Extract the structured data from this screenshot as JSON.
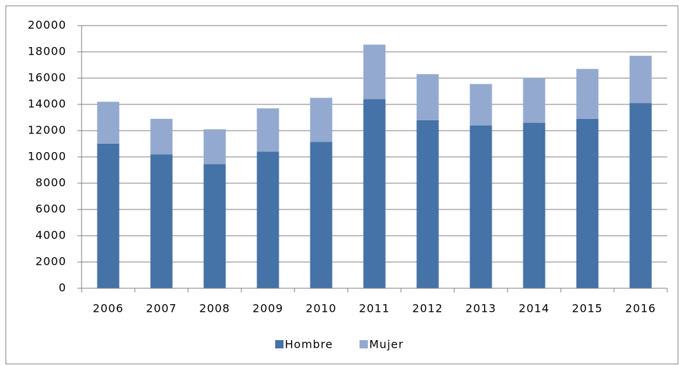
{
  "chart_data": {
    "type": "stacked-bar",
    "categories": [
      "2006",
      "2007",
      "2008",
      "2009",
      "2010",
      "2011",
      "2012",
      "2013",
      "2014",
      "2015",
      "2016"
    ],
    "series": [
      {
        "name": "Hombre",
        "color": "#4572a7",
        "values": [
          11000,
          10200,
          9450,
          10400,
          11150,
          14400,
          12800,
          12400,
          12600,
          12900,
          14100
        ]
      },
      {
        "name": "Mujer",
        "color": "#93a9cf",
        "values": [
          3200,
          2700,
          2650,
          3300,
          3350,
          4150,
          3500,
          3150,
          3400,
          3800,
          3600
        ]
      }
    ],
    "ylim": [
      0,
      20000
    ],
    "yticks": [
      0,
      2000,
      4000,
      6000,
      8000,
      10000,
      12000,
      14000,
      16000,
      18000,
      20000
    ],
    "grid": true,
    "legend": "bottom"
  }
}
